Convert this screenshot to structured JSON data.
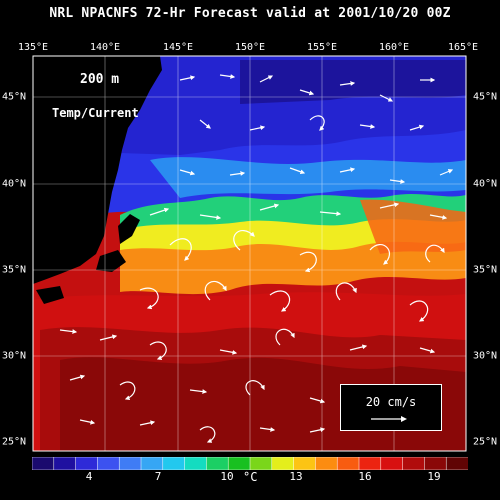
{
  "title": "NRL NPACNFS 72-Hr Forecast valid at 2001/10/20 00Z",
  "map": {
    "depth_label": "200  m",
    "field_label": "Temp/Current",
    "lon_labels": [
      "135°E",
      "140°E",
      "145°E",
      "150°E",
      "155°E",
      "160°E",
      "165°E"
    ],
    "lat_labels": [
      "45°N",
      "40°N",
      "35°N",
      "30°N",
      "25°N"
    ],
    "lon_range": [
      135,
      165
    ],
    "lat_range": [
      25,
      47
    ],
    "vector_scale_label": "20 cm/s",
    "colors": {
      "land": "#000000",
      "ocean_border": "#ffffff",
      "vectors": "#ffffff"
    }
  },
  "colorbar": {
    "tick_labels": [
      "4",
      "7",
      "10",
      "13",
      "16",
      "19"
    ],
    "unit": "°C",
    "min": 1,
    "max": 20,
    "colors": [
      "#1a0a6e",
      "#1f10a0",
      "#2e2ad8",
      "#3c52f0",
      "#3f7cf5",
      "#36a6f4",
      "#22c8ee",
      "#14dcc0",
      "#1ccf64",
      "#18c020",
      "#7ad61a",
      "#e4ee1c",
      "#fcc414",
      "#fc8c10",
      "#f85c10",
      "#ec2410",
      "#d81010",
      "#b00c0c",
      "#8a0808",
      "#600404"
    ]
  }
}
